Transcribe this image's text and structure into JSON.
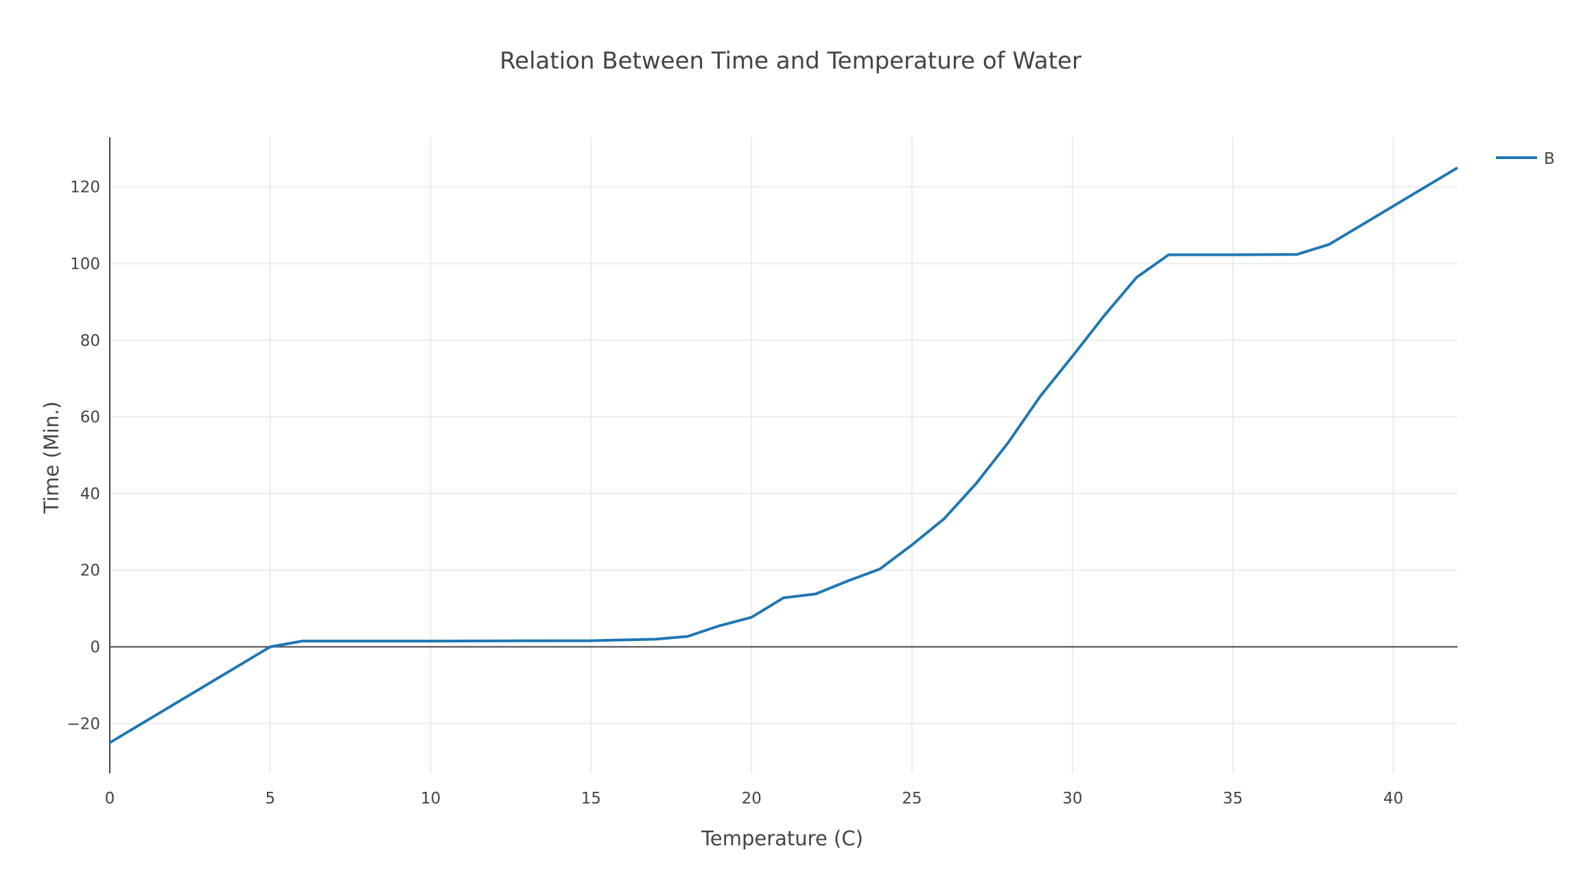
{
  "chart_data": {
    "type": "line",
    "title": "Relation Between Time and Temperature of Water",
    "xlabel": "Temperature (C)",
    "ylabel": "Time (Min.)",
    "xlim": [
      0,
      42
    ],
    "ylim": [
      -33,
      133
    ],
    "x_ticks": [
      0,
      5,
      10,
      15,
      20,
      25,
      30,
      35,
      40
    ],
    "y_ticks": [
      -20,
      0,
      20,
      40,
      60,
      80,
      100,
      120
    ],
    "x_tick_labels": [
      "0",
      "5",
      "10",
      "15",
      "20",
      "25",
      "30",
      "35",
      "40"
    ],
    "y_tick_labels": [
      "−20",
      "0",
      "20",
      "40",
      "60",
      "80",
      "100",
      "120"
    ],
    "grid": true,
    "legend_position": "top-right",
    "series": [
      {
        "name": "B",
        "color": "#1f77b4",
        "x": [
          0,
          5,
          6,
          10,
          15,
          17,
          18,
          19,
          20,
          21,
          22,
          23,
          24,
          25,
          26,
          27,
          28,
          29,
          30,
          31,
          32,
          33,
          35,
          37,
          38,
          40,
          42
        ],
        "y": [
          -25,
          0,
          1.5,
          1.5,
          1.6,
          2,
          2.7,
          5.5,
          7.7,
          12.8,
          13.8,
          17.2,
          20.3,
          26.6,
          33.4,
          42.6,
          53.3,
          65.4,
          75.8,
          86.5,
          96.4,
          102.3,
          102.3,
          102.4,
          105,
          115,
          125
        ]
      }
    ]
  }
}
